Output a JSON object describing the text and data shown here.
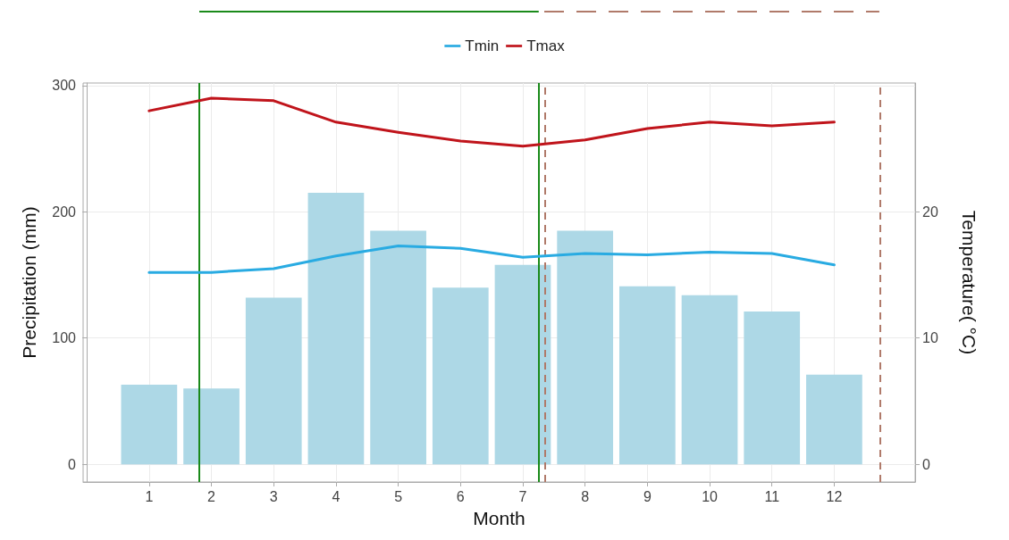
{
  "chart_data": {
    "type": "bar",
    "xlabel": "Month",
    "ylabel": "Precipitation (mm)",
    "y2label": "Temperature( °C)",
    "x": [
      1,
      2,
      3,
      4,
      5,
      6,
      7,
      8,
      9,
      10,
      11,
      12
    ],
    "xlim": [
      -0.06,
      13.3
    ],
    "xticks": [
      1,
      2,
      3,
      4,
      5,
      6,
      7,
      8,
      9,
      10,
      11,
      12
    ],
    "ylim": [
      -14,
      302
    ],
    "yticks": [
      0,
      100,
      200,
      300
    ],
    "y2lim": [
      -1.4,
      30.2
    ],
    "y2ticks": [
      0,
      10,
      20
    ],
    "series": [
      {
        "color": "#add8e6",
        "values": [
          63,
          60,
          132,
          215,
          185,
          140,
          158,
          185,
          141,
          134,
          121,
          71
        ]
      },
      {
        "type": "line",
        "name": "Tmin",
        "axis": "y2",
        "color": "#29abe2",
        "values": [
          15.2,
          15.2,
          15.5,
          16.5,
          17.3,
          17.1,
          16.4,
          16.7,
          16.6,
          16.8,
          16.7,
          15.8
        ]
      },
      {
        "type": "line",
        "name": "Tmax",
        "axis": "y2",
        "color": "#c0141b",
        "values": [
          28.0,
          29.0,
          28.8,
          27.1,
          26.3,
          25.6,
          25.2,
          25.7,
          26.6,
          27.1,
          26.8,
          27.1
        ]
      }
    ],
    "ref_lines": [
      {
        "axis": "x",
        "value": 1.8,
        "color": "#1a8a1a",
        "line_style": "solid"
      },
      {
        "axis": "x",
        "value": 7.25,
        "color": "#1a8a1a",
        "line_style": "solid"
      },
      {
        "axis": "x",
        "value": 7.35,
        "color": "#b07a6a",
        "line_style": "dashed"
      },
      {
        "axis": "x",
        "value": 12.73,
        "color": "#b07a6a",
        "line_style": "dashed"
      }
    ],
    "grid": true,
    "legend": "top",
    "marker": "none"
  }
}
